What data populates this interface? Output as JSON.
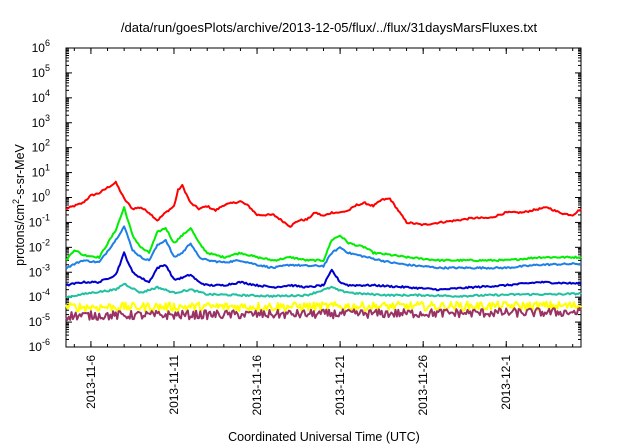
{
  "chart_data": {
    "type": "line",
    "title": "/data/run/goesPlots/archive/2013-12-05/flux/../flux/31daysMarsFluxes.txt",
    "xlabel": "Coordinated Universal Time (UTC)",
    "ylabel_parts": [
      "protons/cm",
      "2",
      "-s-sr-MeV"
    ],
    "yscale": "log",
    "ylim": [
      1e-06,
      1000000.0
    ],
    "y_ticks": [
      {
        "base": "10",
        "exp": "-6",
        "value": 1e-06
      },
      {
        "base": "10",
        "exp": "-5",
        "value": 1e-05
      },
      {
        "base": "10",
        "exp": "-4",
        "value": 0.0001
      },
      {
        "base": "10",
        "exp": "-3",
        "value": 0.001
      },
      {
        "base": "10",
        "exp": "-2",
        "value": 0.01
      },
      {
        "base": "10",
        "exp": "-1",
        "value": 0.1
      },
      {
        "base": "10",
        "exp": "0",
        "value": 1
      },
      {
        "base": "10",
        "exp": "1",
        "value": 10
      },
      {
        "base": "10",
        "exp": "2",
        "value": 100
      },
      {
        "base": "10",
        "exp": "3",
        "value": 1000
      },
      {
        "base": "10",
        "exp": "4",
        "value": 10000
      },
      {
        "base": "10",
        "exp": "5",
        "value": 100000
      },
      {
        "base": "10",
        "exp": "6",
        "value": 1000000
      }
    ],
    "xlim": [
      "2013-11-04T12:00",
      "2013-12-05T12:00"
    ],
    "x_ticks": [
      {
        "label": "2013-11-6",
        "value": "2013-11-06"
      },
      {
        "label": "2013-11-11",
        "value": "2013-11-11"
      },
      {
        "label": "2013-11-16",
        "value": "2013-11-16"
      },
      {
        "label": "2013-11-21",
        "value": "2013-11-21"
      },
      {
        "label": "2013-11-26",
        "value": "2013-11-26"
      },
      {
        "label": "2013-12-1",
        "value": "2013-12-01"
      }
    ],
    "grid": false,
    "series": [
      {
        "color": "#ff0000",
        "x": [
          "2013-11-04T12:00",
          "2013-11-05T12:00",
          "2013-11-06T00:00",
          "2013-11-06T12:00",
          "2013-11-07T00:00",
          "2013-11-07T12:00",
          "2013-11-08T00:00",
          "2013-11-08T12:00",
          "2013-11-09T00:00",
          "2013-11-09T12:00",
          "2013-11-10T00:00",
          "2013-11-10T12:00",
          "2013-11-11T00:00",
          "2013-11-11T06:00",
          "2013-11-11T12:00",
          "2013-11-12T00:00",
          "2013-11-12T12:00",
          "2013-11-13T00:00",
          "2013-11-13T12:00",
          "2013-11-14T00:00",
          "2013-11-15T00:00",
          "2013-11-15T12:00",
          "2013-11-16T00:00",
          "2013-11-17T00:00",
          "2013-11-18T00:00",
          "2013-11-18T12:00",
          "2013-11-19T00:00",
          "2013-11-19T12:00",
          "2013-11-20T00:00",
          "2013-11-20T12:00",
          "2013-11-21T00:00",
          "2013-11-21T12:00",
          "2013-11-22T00:00",
          "2013-11-22T12:00",
          "2013-11-23T00:00",
          "2013-11-23T12:00",
          "2013-11-24T00:00",
          "2013-11-24T12:00",
          "2013-11-25T00:00",
          "2013-11-26T00:00",
          "2013-11-27T00:00",
          "2013-11-28T00:00",
          "2013-11-29T00:00",
          "2013-11-30T00:00",
          "2013-12-01T00:00",
          "2013-12-02T00:00",
          "2013-12-02T12:00",
          "2013-12-03T00:00",
          "2013-12-03T12:00",
          "2013-12-04T00:00",
          "2013-12-04T12:00",
          "2013-12-05T00:00",
          "2013-12-05T12:00"
        ],
        "y": [
          0.35,
          0.6,
          1.2,
          1.5,
          2.5,
          4,
          0.9,
          0.35,
          0.4,
          0.25,
          0.12,
          0.25,
          0.45,
          2,
          3,
          0.6,
          0.35,
          0.45,
          0.3,
          0.5,
          0.7,
          0.45,
          0.2,
          0.2,
          0.07,
          0.12,
          0.13,
          0.25,
          0.18,
          0.25,
          0.25,
          0.3,
          0.5,
          0.6,
          0.45,
          0.8,
          0.9,
          0.3,
          0.1,
          0.08,
          0.1,
          0.12,
          0.15,
          0.15,
          0.25,
          0.25,
          0.3,
          0.35,
          0.4,
          0.28,
          0.22,
          0.2,
          0.35
        ]
      },
      {
        "color": "#00ee00",
        "x": [
          "2013-11-04T12:00",
          "2013-11-05T00:00",
          "2013-11-05T12:00",
          "2013-11-06T12:00",
          "2013-11-07T12:00",
          "2013-11-08T00:00",
          "2013-11-08T12:00",
          "2013-11-09T00:00",
          "2013-11-09T12:00",
          "2013-11-10T00:00",
          "2013-11-10T12:00",
          "2013-11-11T00:00",
          "2013-11-11T12:00",
          "2013-11-12T00:00",
          "2013-11-12T12:00",
          "2013-11-13T00:00",
          "2013-11-14T00:00",
          "2013-11-15T00:00",
          "2013-11-16T00:00",
          "2013-11-17T00:00",
          "2013-11-18T00:00",
          "2013-11-19T00:00",
          "2013-11-20T00:00",
          "2013-11-20T12:00",
          "2013-11-21T00:00",
          "2013-11-21T12:00",
          "2013-11-22T00:00",
          "2013-11-22T12:00",
          "2013-11-23T00:00",
          "2013-11-24T00:00",
          "2013-11-25T00:00",
          "2013-11-27T00:00",
          "2013-11-29T00:00",
          "2013-12-01T00:00",
          "2013-12-03T00:00",
          "2013-12-05T12:00"
        ],
        "y": [
          0.003,
          0.008,
          0.005,
          0.004,
          0.05,
          0.4,
          0.03,
          0.01,
          0.006,
          0.04,
          0.06,
          0.015,
          0.03,
          0.06,
          0.015,
          0.006,
          0.004,
          0.006,
          0.004,
          0.003,
          0.004,
          0.003,
          0.003,
          0.02,
          0.03,
          0.015,
          0.012,
          0.01,
          0.006,
          0.005,
          0.004,
          0.003,
          0.003,
          0.003,
          0.004,
          0.004
        ]
      },
      {
        "color": "#1e7fe6",
        "x": [
          "2013-11-04T12:00",
          "2013-11-05T12:00",
          "2013-11-06T12:00",
          "2013-11-07T12:00",
          "2013-11-08T00:00",
          "2013-11-08T12:00",
          "2013-11-09T00:00",
          "2013-11-09T12:00",
          "2013-11-10T00:00",
          "2013-11-10T12:00",
          "2013-11-11T00:00",
          "2013-11-11T12:00",
          "2013-11-12T00:00",
          "2013-11-12T12:00",
          "2013-11-13T00:00",
          "2013-11-14T00:00",
          "2013-11-15T00:00",
          "2013-11-16T00:00",
          "2013-11-17T00:00",
          "2013-11-18T00:00",
          "2013-11-19T00:00",
          "2013-11-20T00:00",
          "2013-11-20T12:00",
          "2013-11-21T00:00",
          "2013-11-21T12:00",
          "2013-11-22T00:00",
          "2013-11-23T00:00",
          "2013-11-24T00:00",
          "2013-11-25T00:00",
          "2013-11-27T00:00",
          "2013-11-29T00:00",
          "2013-12-01T00:00",
          "2013-12-03T00:00",
          "2013-12-05T12:00"
        ],
        "y": [
          0.0015,
          0.003,
          0.0025,
          0.02,
          0.07,
          0.008,
          0.004,
          0.003,
          0.012,
          0.02,
          0.004,
          0.006,
          0.015,
          0.004,
          0.003,
          0.0025,
          0.003,
          0.002,
          0.0015,
          0.002,
          0.0018,
          0.0018,
          0.006,
          0.01,
          0.006,
          0.005,
          0.0035,
          0.0025,
          0.002,
          0.0015,
          0.0015,
          0.0015,
          0.002,
          0.0022
        ]
      },
      {
        "color": "#0000cc",
        "x": [
          "2013-11-04T12:00",
          "2013-11-05T12:00",
          "2013-11-06T12:00",
          "2013-11-07T12:00",
          "2013-11-08T00:00",
          "2013-11-08T12:00",
          "2013-11-09T00:00",
          "2013-11-09T12:00",
          "2013-11-10T00:00",
          "2013-11-10T12:00",
          "2013-11-11T00:00",
          "2013-11-11T12:00",
          "2013-11-12T00:00",
          "2013-11-12T12:00",
          "2013-11-13T00:00",
          "2013-11-14T00:00",
          "2013-11-15T00:00",
          "2013-11-16T00:00",
          "2013-11-17T00:00",
          "2013-11-18T00:00",
          "2013-11-19T00:00",
          "2013-11-20T00:00",
          "2013-11-20T12:00",
          "2013-11-21T00:00",
          "2013-11-21T12:00",
          "2013-11-22T00:00",
          "2013-11-23T00:00",
          "2013-11-25T00:00",
          "2013-11-27T00:00",
          "2013-11-29T00:00",
          "2013-12-01T00:00",
          "2013-12-03T00:00",
          "2013-12-05T12:00"
        ],
        "y": [
          0.0003,
          0.0004,
          0.0004,
          0.0008,
          0.006,
          0.001,
          0.0006,
          0.0004,
          0.0015,
          0.002,
          0.0005,
          0.0006,
          0.0008,
          0.0004,
          0.0003,
          0.0003,
          0.0004,
          0.0003,
          0.00025,
          0.0003,
          0.00025,
          0.0003,
          0.0012,
          0.0004,
          0.0003,
          0.0003,
          0.0003,
          0.00025,
          0.0002,
          0.00025,
          0.0003,
          0.0004,
          0.00035
        ]
      },
      {
        "color": "#20c0a0",
        "x": [
          "2013-11-04T12:00",
          "2013-11-06T00:00",
          "2013-11-07T12:00",
          "2013-11-08T00:00",
          "2013-11-09T00:00",
          "2013-11-10T00:00",
          "2013-11-11T00:00",
          "2013-11-12T00:00",
          "2013-11-13T00:00",
          "2013-11-15T00:00",
          "2013-11-17T00:00",
          "2013-11-19T00:00",
          "2013-11-20T12:00",
          "2013-11-21T00:00",
          "2013-11-22T00:00",
          "2013-11-24T00:00",
          "2013-11-26T00:00",
          "2013-11-28T00:00",
          "2013-11-30T00:00",
          "2013-12-02T00:00",
          "2013-12-04T00:00",
          "2013-12-05T12:00"
        ],
        "y": [
          0.0001,
          0.00015,
          0.0002,
          0.00035,
          0.00015,
          0.00025,
          0.00015,
          0.0002,
          0.00013,
          0.00012,
          0.00011,
          0.00012,
          0.00025,
          0.00018,
          0.00014,
          0.00012,
          0.00012,
          0.00011,
          0.00012,
          0.00013,
          0.00013,
          0.00014
        ]
      },
      {
        "color": "#ffff00",
        "noise": true,
        "x": [
          "2013-11-04T12:00",
          "2013-12-05T12:00"
        ],
        "y": [
          4e-05,
          4.5e-05
        ]
      },
      {
        "color": "#993366",
        "noise": true,
        "x": [
          "2013-11-04T12:00",
          "2013-12-05T12:00"
        ],
        "y": [
          1.8e-05,
          2.5e-05
        ]
      }
    ]
  }
}
